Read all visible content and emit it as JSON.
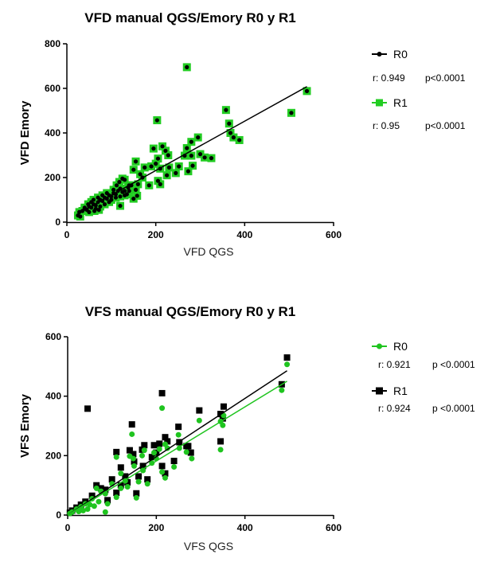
{
  "colors": {
    "black": "#000000",
    "green": "#1fc41f",
    "green_fill": "#22cc22"
  },
  "chart_data": [
    {
      "type": "scatter",
      "title": "VFD manual QGS/Emory R0 y R1",
      "xlabel": "VFD QGS",
      "ylabel": "VFD Emory",
      "xlim": [
        0,
        600
      ],
      "ylim": [
        0,
        800
      ],
      "xticks": [
        "0",
        "200",
        "400",
        "600"
      ],
      "yticks": [
        "0",
        "200",
        "400",
        "600",
        "800"
      ],
      "grid": false,
      "legend_placement": "right",
      "series": [
        {
          "name": "R0",
          "marker": "circle",
          "color": "#000000",
          "r": "r: 0.949",
          "p": "p<0.0001",
          "fit": {
            "slope": 1.107,
            "intercept": 10,
            "x_range": [
              25,
              540
            ]
          }
        },
        {
          "name": "R1",
          "marker": "square",
          "color": "#22cc22",
          "r": "r: 0.95",
          "p": "p<0.0001"
        }
      ],
      "points": [
        [
          270,
          695
        ],
        [
          540,
          588
        ],
        [
          505,
          490
        ],
        [
          358,
          503
        ],
        [
          365,
          442
        ],
        [
          203,
          457
        ],
        [
          368,
          400
        ],
        [
          375,
          380
        ],
        [
          388,
          368
        ],
        [
          295,
          380
        ],
        [
          280,
          360
        ],
        [
          270,
          332
        ],
        [
          215,
          340
        ],
        [
          222,
          320
        ],
        [
          228,
          300
        ],
        [
          265,
          298
        ],
        [
          280,
          298
        ],
        [
          300,
          305
        ],
        [
          310,
          290
        ],
        [
          325,
          287
        ],
        [
          273,
          228
        ],
        [
          283,
          253
        ],
        [
          245,
          220
        ],
        [
          252,
          250
        ],
        [
          195,
          330
        ],
        [
          155,
          272
        ],
        [
          150,
          235
        ],
        [
          205,
          285
        ],
        [
          200,
          262
        ],
        [
          210,
          240
        ],
        [
          190,
          250
        ],
        [
          175,
          245
        ],
        [
          165,
          215
        ],
        [
          170,
          200
        ],
        [
          185,
          165
        ],
        [
          210,
          170
        ],
        [
          205,
          185
        ],
        [
          225,
          210
        ],
        [
          230,
          245
        ],
        [
          160,
          170
        ],
        [
          155,
          145
        ],
        [
          150,
          105
        ],
        [
          158,
          118
        ],
        [
          120,
          73
        ],
        [
          125,
          195
        ],
        [
          118,
          180
        ],
        [
          130,
          190
        ],
        [
          140,
          165
        ],
        [
          25,
          30
        ],
        [
          28,
          45
        ],
        [
          30,
          25
        ],
        [
          35,
          50
        ],
        [
          40,
          60
        ],
        [
          45,
          55
        ],
        [
          50,
          70
        ],
        [
          55,
          65
        ],
        [
          60,
          80
        ],
        [
          65,
          75
        ],
        [
          70,
          90
        ],
        [
          75,
          100
        ],
        [
          80,
          95
        ],
        [
          85,
          110
        ],
        [
          90,
          105
        ],
        [
          95,
          120
        ],
        [
          100,
          115
        ],
        [
          105,
          130
        ],
        [
          110,
          125
        ],
        [
          115,
          140
        ],
        [
          120,
          150
        ],
        [
          125,
          135
        ],
        [
          130,
          120
        ],
        [
          112,
          165
        ],
        [
          105,
          145
        ],
        [
          90,
          130
        ],
        [
          80,
          120
        ],
        [
          70,
          110
        ],
        [
          60,
          100
        ],
        [
          55,
          90
        ],
        [
          48,
          80
        ],
        [
          40,
          65
        ],
        [
          100,
          100
        ],
        [
          110,
          110
        ],
        [
          120,
          115
        ],
        [
          95,
          90
        ],
        [
          85,
          80
        ],
        [
          75,
          70
        ],
        [
          65,
          60
        ],
        [
          130,
          140
        ],
        [
          135,
          125
        ],
        [
          138,
          155
        ],
        [
          140,
          140
        ],
        [
          145,
          165
        ],
        [
          62,
          50
        ],
        [
          72,
          55
        ],
        [
          50,
          45
        ]
      ]
    },
    {
      "type": "scatter",
      "title": "VFS manual QGS/Emory R0 y R1",
      "xlabel": "VFS QGS",
      "ylabel": "VFS Emory",
      "xlim": [
        0,
        600
      ],
      "ylim": [
        0,
        600
      ],
      "xticks": [
        "0",
        "200",
        "400",
        "600"
      ],
      "yticks": [
        "0",
        "200",
        "400",
        "600"
      ],
      "grid": false,
      "legend_placement": "right",
      "series": [
        {
          "name": "R0",
          "marker": "circle",
          "color": "#1fc41f",
          "r": "r: 0.921",
          "p": "p <0.0001",
          "fit": {
            "slope": 0.91,
            "intercept": 0,
            "x_range": [
              0,
              495
            ]
          },
          "points": [
            [
              495,
              507
            ],
            [
              483,
              420
            ],
            [
              213,
              360
            ],
            [
              352,
              335
            ],
            [
              345,
              315
            ],
            [
              350,
              302
            ],
            [
              345,
              220
            ],
            [
              297,
              318
            ],
            [
              250,
              270
            ],
            [
              252,
              225
            ],
            [
              268,
              212
            ],
            [
              280,
              190
            ],
            [
              240,
              162
            ],
            [
              220,
              238
            ],
            [
              225,
              225
            ],
            [
              207,
              222
            ],
            [
              220,
              125
            ],
            [
              213,
              145
            ],
            [
              195,
              210
            ],
            [
              173,
              218
            ],
            [
              168,
              200
            ],
            [
              145,
              272
            ],
            [
              140,
              198
            ],
            [
              148,
              190
            ],
            [
              110,
              195
            ],
            [
              120,
              140
            ],
            [
              155,
              58
            ],
            [
              180,
              105
            ],
            [
              190,
              175
            ],
            [
              200,
              190
            ],
            [
              160,
              112
            ],
            [
              130,
              115
            ],
            [
              100,
              105
            ],
            [
              75,
              80
            ],
            [
              65,
              90
            ],
            [
              85,
              72
            ],
            [
              55,
              55
            ],
            [
              40,
              38
            ],
            [
              30,
              28
            ],
            [
              20,
              20
            ],
            [
              10,
              10
            ],
            [
              5,
              5
            ],
            [
              90,
              38
            ],
            [
              85,
              10
            ],
            [
              110,
              60
            ],
            [
              150,
              165
            ],
            [
              170,
              150
            ],
            [
              135,
              95
            ],
            [
              120,
              90
            ],
            [
              60,
              30
            ],
            [
              45,
              20
            ],
            [
              25,
              12
            ],
            [
              70,
              45
            ],
            [
              50,
              35
            ],
            [
              35,
              15
            ]
          ]
        },
        {
          "name": "R1",
          "marker": "square",
          "color": "#000000",
          "r": "r: 0.924",
          "p": "p <0.0001",
          "fit": {
            "slope": 0.985,
            "intercept": -2,
            "x_range": [
              0,
              495
            ]
          },
          "points": [
            [
              45,
              358
            ],
            [
              213,
              410
            ],
            [
              495,
              530
            ],
            [
              483,
              440
            ],
            [
              352,
              365
            ],
            [
              345,
              340
            ],
            [
              350,
              325
            ],
            [
              345,
              248
            ],
            [
              297,
              352
            ],
            [
              250,
              297
            ],
            [
              252,
              245
            ],
            [
              268,
              232
            ],
            [
              272,
              232
            ],
            [
              278,
              210
            ],
            [
              240,
              182
            ],
            [
              220,
              262
            ],
            [
              225,
              248
            ],
            [
              207,
              240
            ],
            [
              220,
              140
            ],
            [
              213,
              165
            ],
            [
              195,
              235
            ],
            [
              173,
              235
            ],
            [
              168,
              220
            ],
            [
              145,
              305
            ],
            [
              140,
              218
            ],
            [
              148,
              205
            ],
            [
              110,
              212
            ],
            [
              120,
              160
            ],
            [
              155,
              73
            ],
            [
              180,
              120
            ],
            [
              190,
              195
            ],
            [
              200,
              210
            ],
            [
              160,
              130
            ],
            [
              130,
              130
            ],
            [
              100,
              120
            ],
            [
              75,
              90
            ],
            [
              65,
              100
            ],
            [
              85,
              85
            ],
            [
              55,
              65
            ],
            [
              40,
              45
            ],
            [
              30,
              35
            ],
            [
              20,
              25
            ],
            [
              10,
              15
            ],
            [
              5,
              8
            ],
            [
              90,
              50
            ],
            [
              110,
              75
            ],
            [
              150,
              180
            ],
            [
              170,
              165
            ],
            [
              135,
              110
            ],
            [
              120,
              100
            ]
          ]
        }
      ]
    }
  ]
}
